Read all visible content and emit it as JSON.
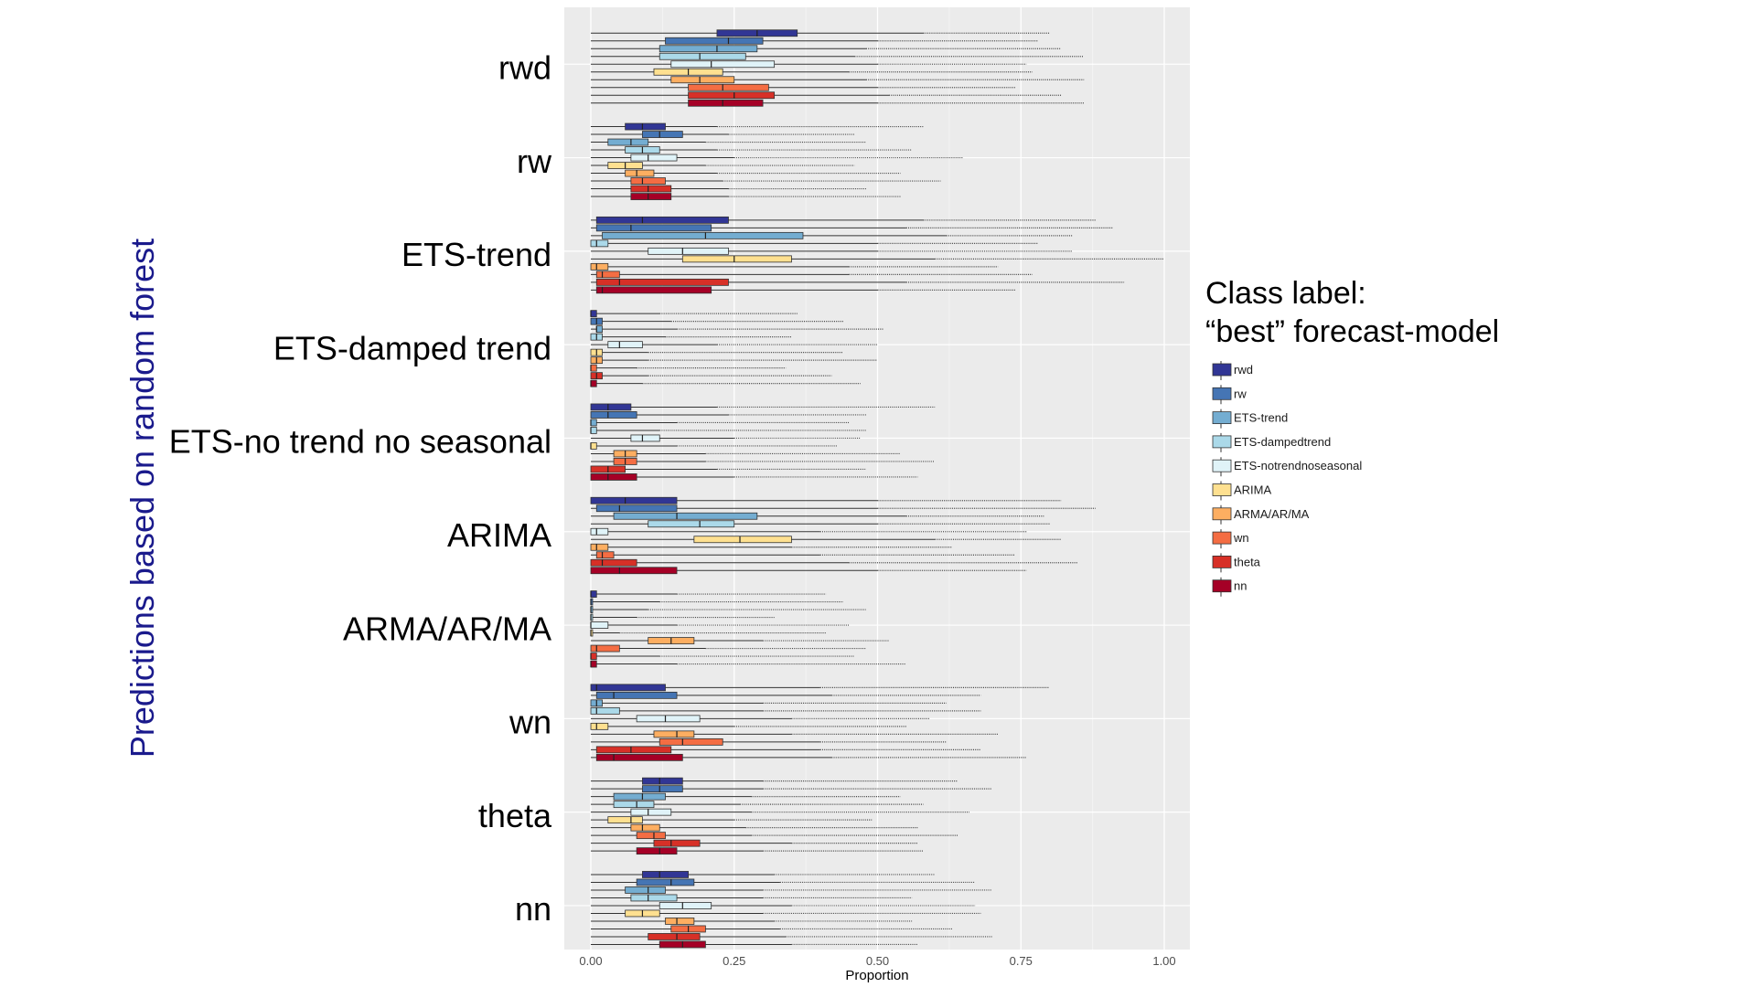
{
  "chart_data": {
    "type": "box",
    "ylabel": "Predictions based on random forest",
    "xlabel": "Proportion",
    "xlim": [
      -0.05,
      1.05
    ],
    "xticks": [
      0.0,
      0.25,
      0.5,
      0.75,
      1.0
    ],
    "xtick_labels": [
      "0.00",
      "0.25",
      "0.50",
      "0.75",
      "1.00"
    ],
    "grid": true,
    "legend_placement": "right",
    "legend_title_line1": "Class label:",
    "legend_title_line2": "“best” forecast-model",
    "series": [
      {
        "name": "rwd",
        "color": "#313695"
      },
      {
        "name": "rw",
        "color": "#4575b4"
      },
      {
        "name": "ETS-trend",
        "color": "#74add1"
      },
      {
        "name": "ETS-dampedtrend",
        "color": "#abd9e9"
      },
      {
        "name": "ETS-notrendnoseasonal",
        "color": "#e0f3f8"
      },
      {
        "name": "ARIMA",
        "color": "#fee090"
      },
      {
        "name": "ARMA/AR/MA",
        "color": "#fdae61"
      },
      {
        "name": "wn",
        "color": "#f46d43"
      },
      {
        "name": "theta",
        "color": "#d73027"
      },
      {
        "name": "nn",
        "color": "#a50026"
      }
    ],
    "groups": [
      {
        "label": "rwd",
        "boxes": [
          [
            0.22,
            0.29,
            0.36,
            0.58
          ],
          [
            0.13,
            0.24,
            0.3,
            0.5
          ],
          [
            0.12,
            0.22,
            0.29,
            0.48
          ],
          [
            0.12,
            0.19,
            0.27,
            0.46
          ],
          [
            0.14,
            0.21,
            0.32,
            0.5
          ],
          [
            0.11,
            0.17,
            0.23,
            0.45
          ],
          [
            0.14,
            0.19,
            0.25,
            0.48
          ],
          [
            0.17,
            0.23,
            0.31,
            0.5
          ],
          [
            0.17,
            0.25,
            0.32,
            0.52
          ],
          [
            0.17,
            0.23,
            0.3,
            0.5
          ]
        ]
      },
      {
        "label": "rw",
        "boxes": [
          [
            0.06,
            0.09,
            0.13,
            0.22
          ],
          [
            0.09,
            0.12,
            0.16,
            0.24
          ],
          [
            0.03,
            0.07,
            0.1,
            0.2
          ],
          [
            0.06,
            0.09,
            0.12,
            0.22
          ],
          [
            0.07,
            0.1,
            0.15,
            0.25
          ],
          [
            0.03,
            0.06,
            0.09,
            0.2
          ],
          [
            0.06,
            0.08,
            0.11,
            0.22
          ],
          [
            0.07,
            0.09,
            0.13,
            0.23
          ],
          [
            0.07,
            0.1,
            0.14,
            0.24
          ],
          [
            0.07,
            0.1,
            0.14,
            0.24
          ]
        ]
      },
      {
        "label": "ETS-trend",
        "boxes": [
          [
            0.01,
            0.09,
            0.24,
            0.58
          ],
          [
            0.01,
            0.07,
            0.21,
            0.55
          ],
          [
            0.02,
            0.2,
            0.37,
            0.62
          ],
          [
            0.0,
            0.01,
            0.03,
            0.5
          ],
          [
            0.1,
            0.16,
            0.24,
            0.5
          ],
          [
            0.16,
            0.25,
            0.35,
            0.6
          ],
          [
            0.0,
            0.01,
            0.03,
            0.45
          ],
          [
            0.01,
            0.02,
            0.05,
            0.45
          ],
          [
            0.01,
            0.05,
            0.24,
            0.55
          ],
          [
            0.01,
            0.02,
            0.21,
            0.5
          ]
        ]
      },
      {
        "label": "ETS-damped trend",
        "boxes": [
          [
            0.0,
            0.0,
            0.01,
            0.12
          ],
          [
            0.0,
            0.01,
            0.02,
            0.14
          ],
          [
            0.01,
            0.01,
            0.02,
            0.15
          ],
          [
            0.0,
            0.01,
            0.02,
            0.13
          ],
          [
            0.03,
            0.05,
            0.09,
            0.22
          ],
          [
            0.0,
            0.01,
            0.02,
            0.1
          ],
          [
            0.0,
            0.01,
            0.02,
            0.1
          ],
          [
            0.0,
            0.0,
            0.01,
            0.08
          ],
          [
            0.0,
            0.01,
            0.02,
            0.1
          ],
          [
            0.0,
            0.0,
            0.01,
            0.09
          ]
        ]
      },
      {
        "label": "ETS-no trend no seasonal",
        "boxes": [
          [
            0.0,
            0.03,
            0.07,
            0.22
          ],
          [
            0.0,
            0.03,
            0.08,
            0.24
          ],
          [
            0.0,
            0.0,
            0.01,
            0.15
          ],
          [
            0.0,
            0.0,
            0.01,
            0.12
          ],
          [
            0.07,
            0.09,
            0.12,
            0.25
          ],
          [
            0.0,
            0.0,
            0.01,
            0.15
          ],
          [
            0.04,
            0.06,
            0.08,
            0.2
          ],
          [
            0.04,
            0.06,
            0.08,
            0.2
          ],
          [
            0.0,
            0.03,
            0.06,
            0.22
          ],
          [
            0.0,
            0.03,
            0.08,
            0.25
          ]
        ]
      },
      {
        "label": "ARIMA",
        "boxes": [
          [
            0.0,
            0.06,
            0.15,
            0.5
          ],
          [
            0.01,
            0.05,
            0.15,
            0.5
          ],
          [
            0.04,
            0.15,
            0.29,
            0.55
          ],
          [
            0.1,
            0.19,
            0.25,
            0.5
          ],
          [
            0.0,
            0.01,
            0.03,
            0.4
          ],
          [
            0.18,
            0.26,
            0.35,
            0.6
          ],
          [
            0.0,
            0.01,
            0.03,
            0.35
          ],
          [
            0.01,
            0.02,
            0.04,
            0.4
          ],
          [
            0.0,
            0.02,
            0.08,
            0.45
          ],
          [
            0.0,
            0.05,
            0.15,
            0.5
          ]
        ]
      },
      {
        "label": "ARMA/AR/MA",
        "boxes": [
          [
            0.0,
            0.0,
            0.01,
            0.15
          ],
          [
            0.0,
            0.0,
            0.0,
            0.12
          ],
          [
            0.0,
            0.0,
            0.0,
            0.1
          ],
          [
            0.0,
            0.0,
            0.0,
            0.08
          ],
          [
            0.0,
            0.0,
            0.03,
            0.15
          ],
          [
            0.0,
            0.0,
            0.0,
            0.05
          ],
          [
            0.1,
            0.14,
            0.18,
            0.3
          ],
          [
            0.0,
            0.01,
            0.05,
            0.2
          ],
          [
            0.0,
            0.0,
            0.01,
            0.12
          ],
          [
            0.0,
            0.0,
            0.01,
            0.15
          ]
        ]
      },
      {
        "label": "wn",
        "boxes": [
          [
            0.0,
            0.01,
            0.13,
            0.4
          ],
          [
            0.01,
            0.04,
            0.15,
            0.42
          ],
          [
            0.0,
            0.01,
            0.02,
            0.3
          ],
          [
            0.0,
            0.01,
            0.05,
            0.3
          ],
          [
            0.08,
            0.13,
            0.19,
            0.35
          ],
          [
            0.0,
            0.01,
            0.03,
            0.25
          ],
          [
            0.11,
            0.15,
            0.18,
            0.35
          ],
          [
            0.12,
            0.16,
            0.23,
            0.4
          ],
          [
            0.01,
            0.07,
            0.14,
            0.4
          ],
          [
            0.01,
            0.04,
            0.16,
            0.42
          ]
        ]
      },
      {
        "label": "theta",
        "boxes": [
          [
            0.09,
            0.12,
            0.16,
            0.3
          ],
          [
            0.09,
            0.12,
            0.16,
            0.3
          ],
          [
            0.04,
            0.09,
            0.13,
            0.28
          ],
          [
            0.04,
            0.08,
            0.11,
            0.26
          ],
          [
            0.07,
            0.1,
            0.14,
            0.28
          ],
          [
            0.03,
            0.07,
            0.09,
            0.25
          ],
          [
            0.07,
            0.09,
            0.12,
            0.27
          ],
          [
            0.08,
            0.11,
            0.13,
            0.28
          ],
          [
            0.11,
            0.14,
            0.19,
            0.35
          ],
          [
            0.08,
            0.12,
            0.15,
            0.3
          ]
        ]
      },
      {
        "label": "nn",
        "boxes": [
          [
            0.09,
            0.12,
            0.17,
            0.32
          ],
          [
            0.08,
            0.14,
            0.18,
            0.33
          ],
          [
            0.06,
            0.1,
            0.13,
            0.3
          ],
          [
            0.07,
            0.1,
            0.15,
            0.3
          ],
          [
            0.12,
            0.16,
            0.21,
            0.35
          ],
          [
            0.06,
            0.09,
            0.12,
            0.3
          ],
          [
            0.13,
            0.15,
            0.18,
            0.32
          ],
          [
            0.14,
            0.17,
            0.2,
            0.33
          ],
          [
            0.1,
            0.15,
            0.19,
            0.34
          ],
          [
            0.12,
            0.16,
            0.2,
            0.35
          ]
        ]
      }
    ]
  }
}
